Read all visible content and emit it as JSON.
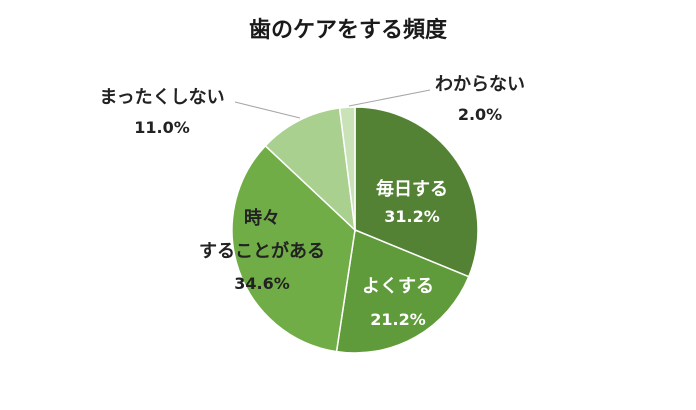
{
  "chart_data": {
    "type": "pie",
    "title": "歯のケアをする頻度",
    "slices": [
      {
        "label": "毎日する",
        "value": 31.2,
        "value_label": "31.2%",
        "color": "#548235"
      },
      {
        "label": "よくする",
        "value": 21.2,
        "value_label": "21.2%",
        "color": "#5f9a3b"
      },
      {
        "label_lines": [
          "時々",
          "することがある"
        ],
        "value": 34.6,
        "value_label": "34.6%",
        "color": "#70ad47"
      },
      {
        "label": "まったくしない",
        "value": 11.0,
        "value_label": "11.0%",
        "color": "#a9d08e"
      },
      {
        "label": "わからない",
        "value": 2.0,
        "value_label": "2.0%",
        "color": "#c9e2b8"
      }
    ],
    "legend": "none"
  }
}
